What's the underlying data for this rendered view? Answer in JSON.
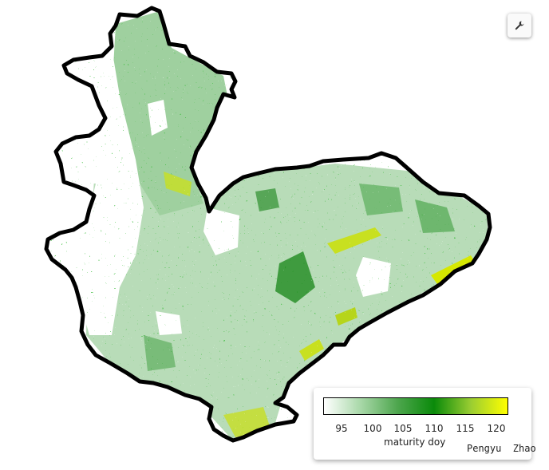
{
  "map": {
    "legend": {
      "ticks": [
        "95",
        "100",
        "105",
        "110",
        "115",
        "120"
      ],
      "title": "maturity doy",
      "author": "Pengyu  Zhao",
      "gradient": [
        "#ffffff",
        "#a8d8a8",
        "#4ea64e",
        "#0a8a0a",
        "#9acd32",
        "#ffff00"
      ]
    },
    "tool_icon": "wrench-icon",
    "colors": {
      "boundary": "#000000",
      "light_green": "#b8dcb8",
      "mid_green": "#62b162",
      "dark_green": "#0b7f0b",
      "yellow_green": "#b6d51a",
      "yellow": "#f2f000"
    }
  }
}
